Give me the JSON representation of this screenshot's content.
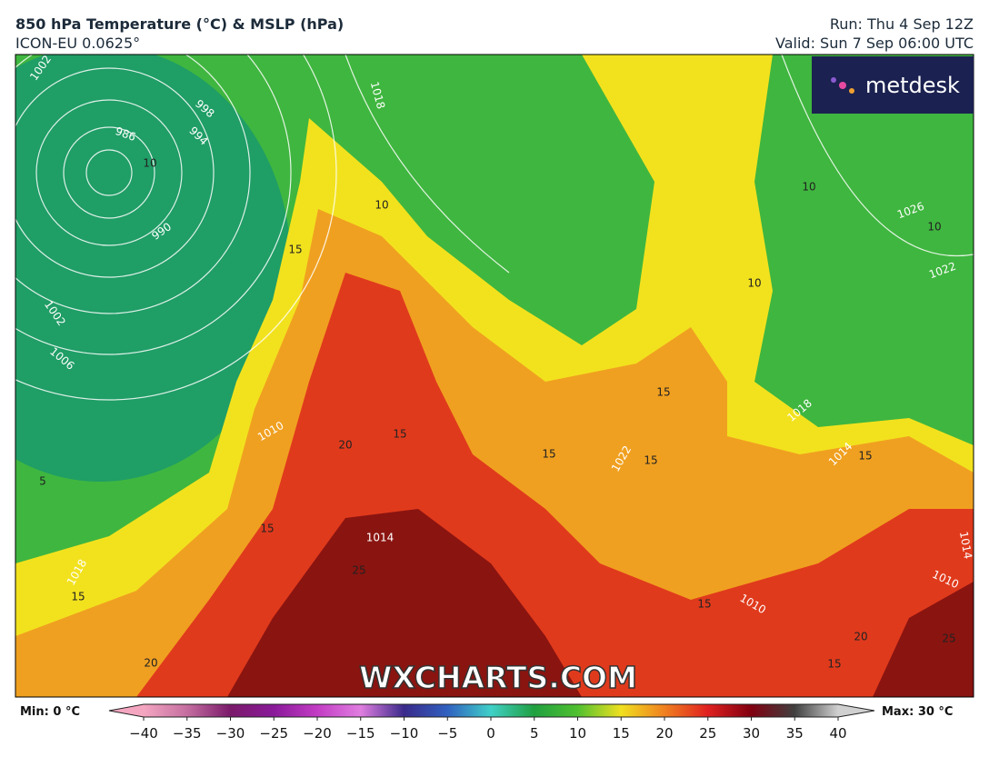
{
  "header": {
    "title": "850 hPa Temperature (°C) & MSLP (hPa)",
    "model": "ICON-EU 0.0625°",
    "run": "Run: Thu 4 Sep 12Z",
    "valid": "Valid: Sun 7 Sep 06:00 UTC"
  },
  "logo": "metdesk",
  "watermark": "WXCHARTS.COM",
  "map": {
    "isobar_labels": [
      1002,
      998,
      994,
      986,
      990,
      1018,
      1026,
      1022,
      1002,
      1006,
      1010,
      1014,
      1018,
      1022,
      1018,
      1014,
      1010,
      1010,
      1014
    ],
    "temperature_labels": [
      10,
      10,
      15,
      10,
      10,
      10,
      15,
      15,
      20,
      15,
      15,
      15,
      5,
      15,
      25,
      15,
      15,
      20,
      20,
      25,
      15
    ]
  },
  "colorbar": {
    "min_label": "Min: 0 °C",
    "max_label": "Max: 30 °C",
    "range": [
      -40,
      40
    ],
    "ticks": [
      {
        "value": -40,
        "label": "−40"
      },
      {
        "value": -35,
        "label": "−35"
      },
      {
        "value": -30,
        "label": "−30"
      },
      {
        "value": -25,
        "label": "−25"
      },
      {
        "value": -20,
        "label": "−20"
      },
      {
        "value": -15,
        "label": "−15"
      },
      {
        "value": -10,
        "label": "−10"
      },
      {
        "value": -5,
        "label": "−5"
      },
      0,
      5,
      10,
      15,
      20,
      25,
      30,
      35,
      40
    ],
    "colors": [
      "#f4a6c0",
      "#c46ea0",
      "#7a1a6a",
      "#8a1a9a",
      "#c23cc4",
      "#e07ee0",
      "#3a2a8a",
      "#3060c0",
      "#40d0c8",
      "#20a040",
      "#50c030",
      "#f0e020",
      "#f08020",
      "#e02020",
      "#800010",
      "#404040",
      "#d0d0d0"
    ]
  }
}
